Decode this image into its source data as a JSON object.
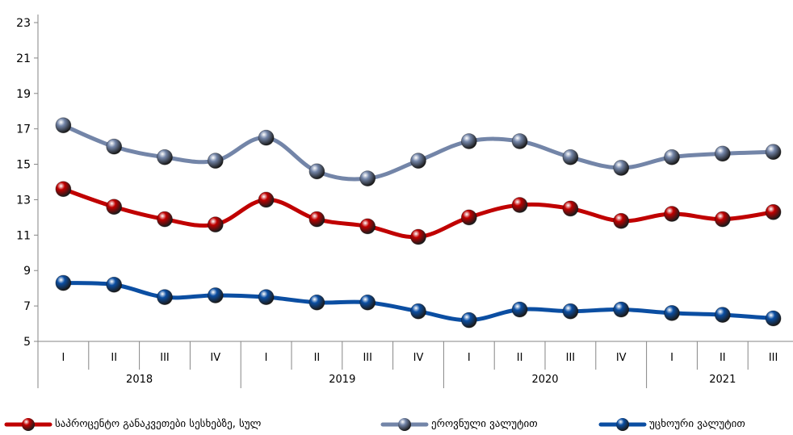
{
  "chart_data": {
    "type": "line",
    "ylim": [
      5,
      23
    ],
    "yticks": [
      5,
      7,
      9,
      11,
      13,
      15,
      17,
      19,
      21,
      23
    ],
    "years": [
      "2018",
      "2019",
      "2020",
      "2021"
    ],
    "categories": [
      "I",
      "II",
      "III",
      "IV",
      "I",
      "II",
      "III",
      "IV",
      "I",
      "II",
      "III",
      "IV",
      "I",
      "II",
      "III"
    ],
    "grid": false,
    "legend_position": "bottom",
    "series": [
      {
        "name": "საპროცენტო განაკვეთები სესხებზე, სულ",
        "color": "#c00000",
        "values": [
          13.6,
          12.6,
          11.9,
          11.6,
          13.0,
          11.9,
          11.5,
          10.9,
          12.0,
          12.7,
          12.5,
          11.8,
          12.2,
          11.9,
          12.3
        ]
      },
      {
        "name": "ეროვნული ვალუტით",
        "color": "#7385a8",
        "values": [
          17.2,
          16.0,
          15.4,
          15.2,
          16.5,
          14.6,
          14.2,
          15.2,
          16.3,
          16.3,
          15.4,
          14.8,
          15.4,
          15.6,
          15.7
        ]
      },
      {
        "name": "უცხოური ვალუტით",
        "color": "#0b4ea2",
        "values": [
          8.3,
          8.2,
          7.5,
          7.6,
          7.5,
          7.2,
          7.2,
          6.7,
          6.2,
          6.8,
          6.7,
          6.8,
          6.6,
          6.5,
          6.3
        ]
      }
    ]
  }
}
